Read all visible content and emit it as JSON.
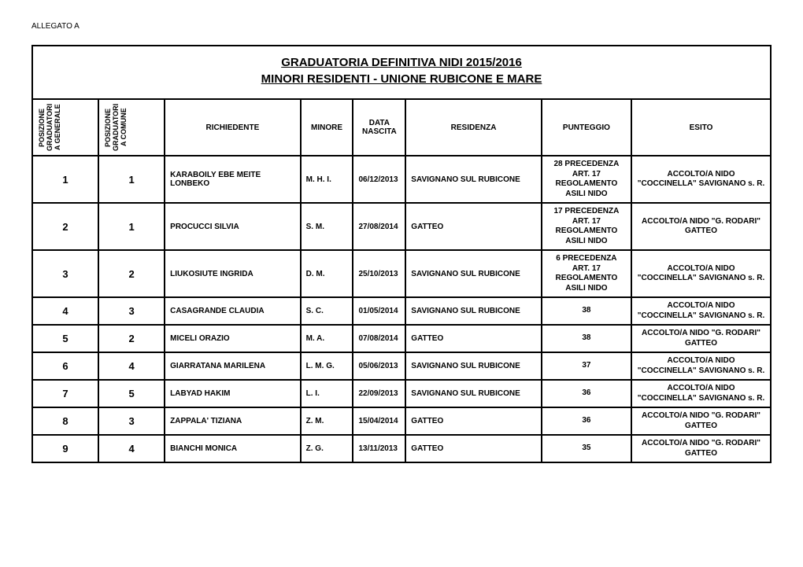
{
  "allegato": "ALLEGATO A",
  "title_line1": "GRADUATORIA DEFINITIVA NIDI 2015/2016",
  "title_line2": "MINORI RESIDENTI - UNIONE RUBICONE E MARE",
  "headers": {
    "pos_gen": "POSIZIONE GRADUATORIA GENERALE",
    "pos_com": "POSIZIONE GRADUATORIA COMUNE",
    "richiedente": "RICHIEDENTE",
    "minore": "MINORE",
    "data_nascita": "DATA NASCITA",
    "residenza": "RESIDENZA",
    "punteggio": "PUNTEGGIO",
    "esito": "ESITO"
  },
  "rows": [
    {
      "pos_gen": "1",
      "pos_com": "1",
      "richiedente": "KARABOILY EBE MEITE LONBEKO",
      "minore": "M. H. I.",
      "data": "06/12/2013",
      "residenza": "SAVIGNANO SUL RUBICONE",
      "punteggio": "28 PRECEDENZA ART. 17 REGOLAMENTO ASILI NIDO",
      "esito": "ACCOLTO/A NIDO \"COCCINELLA\" SAVIGNANO s. R."
    },
    {
      "pos_gen": "2",
      "pos_com": "1",
      "richiedente": "PROCUCCI SILVIA",
      "minore": "S. M.",
      "data": "27/08/2014",
      "residenza": "GATTEO",
      "punteggio": "17 PRECEDENZA ART. 17 REGOLAMENTO ASILI NIDO",
      "esito": "ACCOLTO/A NIDO \"G. RODARI\" GATTEO"
    },
    {
      "pos_gen": "3",
      "pos_com": "2",
      "richiedente": "LIUKOSIUTE INGRIDA",
      "minore": "D. M.",
      "data": "25/10/2013",
      "residenza": "SAVIGNANO SUL RUBICONE",
      "punteggio": "6 PRECEDENZA ART. 17 REGOLAMENTO ASILI NIDO",
      "esito": "ACCOLTO/A NIDO \"COCCINELLA\" SAVIGNANO s. R."
    },
    {
      "pos_gen": "4",
      "pos_com": "3",
      "richiedente": "CASAGRANDE CLAUDIA",
      "minore": "S. C.",
      "data": "01/05/2014",
      "residenza": "SAVIGNANO SUL RUBICONE",
      "punteggio": "38",
      "esito": "ACCOLTO/A NIDO \"COCCINELLA\" SAVIGNANO s. R."
    },
    {
      "pos_gen": "5",
      "pos_com": "2",
      "richiedente": "MICELI ORAZIO",
      "minore": "M. A.",
      "data": "07/08/2014",
      "residenza": "GATTEO",
      "punteggio": "38",
      "esito": "ACCOLTO/A NIDO \"G. RODARI\" GATTEO"
    },
    {
      "pos_gen": "6",
      "pos_com": "4",
      "richiedente": "GIARRATANA MARILENA",
      "minore": "L. M. G.",
      "data": "05/06/2013",
      "residenza": "SAVIGNANO SUL RUBICONE",
      "punteggio": "37",
      "esito": "ACCOLTO/A NIDO \"COCCINELLA\" SAVIGNANO s. R."
    },
    {
      "pos_gen": "7",
      "pos_com": "5",
      "richiedente": "LABYAD HAKIM",
      "minore": "L. I.",
      "data": "22/09/2013",
      "residenza": "SAVIGNANO SUL RUBICONE",
      "punteggio": "36",
      "esito": "ACCOLTO/A NIDO \"COCCINELLA\" SAVIGNANO s. R."
    },
    {
      "pos_gen": "8",
      "pos_com": "3",
      "richiedente": "ZAPPALA' TIZIANA",
      "minore": "Z. M.",
      "data": "15/04/2014",
      "residenza": "GATTEO",
      "punteggio": "36",
      "esito": "ACCOLTO/A NIDO \"G. RODARI\" GATTEO"
    },
    {
      "pos_gen": "9",
      "pos_com": "4",
      "richiedente": "BIANCHI MONICA",
      "minore": "Z. G.",
      "data": "13/11/2013",
      "residenza": "GATTEO",
      "punteggio": "35",
      "esito": "ACCOLTO/A NIDO \"G. RODARI\" GATTEO"
    }
  ]
}
